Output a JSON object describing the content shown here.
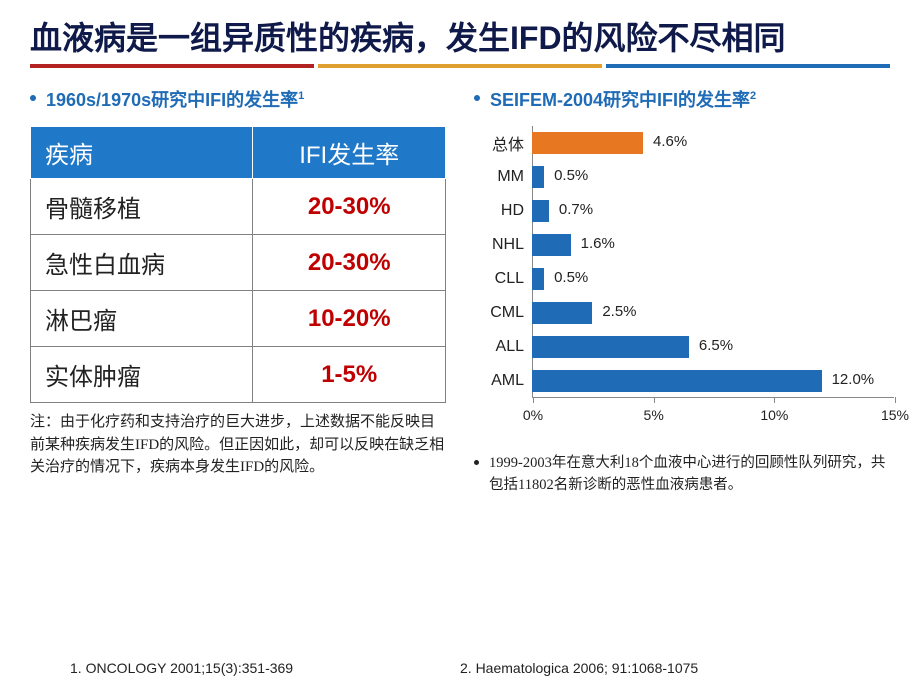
{
  "title": "血液病是一组异质性的疾病，发生IFD的风险不尽相同",
  "underline_colors": {
    "red": "#b22222",
    "yellow": "#e0a030",
    "blue": "#1f6bb6"
  },
  "left": {
    "heading": "1960s/1970s研究中IFI的发生率",
    "heading_sup": "1",
    "table": {
      "header_bg": "#1f78c8",
      "header_color": "#ffffff",
      "rate_color": "#c00000",
      "columns": [
        "疾病",
        "IFI发生率"
      ],
      "rows": [
        {
          "disease": "骨髓移植",
          "rate": "20-30%"
        },
        {
          "disease": "急性白血病",
          "rate": "20-30%"
        },
        {
          "disease": "淋巴瘤",
          "rate": "10-20%"
        },
        {
          "disease": "实体肿瘤",
          "rate": "1-5%"
        }
      ]
    },
    "note": "注：由于化疗药和支持治疗的巨大进步，上述数据不能反映目前某种疾病发生IFD的风险。但正因如此，却可以反映在缺乏相关治疗的情况下，疾病本身发生IFD的风险。"
  },
  "right": {
    "heading": "SEIFEM-2004研究中IFI的发生率",
    "heading_sup": "2",
    "chart": {
      "type": "bar-horizontal",
      "xmax": 15,
      "xticks": [
        0,
        5,
        10,
        15
      ],
      "bar_default_color": "#1f6bb6",
      "highlight_color": "#e87722",
      "series": [
        {
          "label": "总体",
          "value": 4.6,
          "display": "4.6%",
          "color": "#e87722"
        },
        {
          "label": "MM",
          "value": 0.5,
          "display": "0.5%",
          "color": "#1f6bb6"
        },
        {
          "label": "HD",
          "value": 0.7,
          "display": "0.7%",
          "color": "#1f6bb6"
        },
        {
          "label": "NHL",
          "value": 1.6,
          "display": "1.6%",
          "color": "#1f6bb6"
        },
        {
          "label": "CLL",
          "value": 0.5,
          "display": "0.5%",
          "color": "#1f6bb6"
        },
        {
          "label": "CML",
          "value": 2.5,
          "display": "2.5%",
          "color": "#1f6bb6"
        },
        {
          "label": "ALL",
          "value": 6.5,
          "display": "6.5%",
          "color": "#1f6bb6"
        },
        {
          "label": "AML",
          "value": 12.0,
          "display": "12.0%",
          "color": "#1f6bb6"
        }
      ]
    },
    "study_note": "1999-2003年在意大利18个血液中心进行的回顾性队列研究，共包括11802名新诊断的恶性血液病患者。"
  },
  "refs": {
    "ref1": "1. ONCOLOGY 2001;15(3):351-369",
    "ref2": "2. Haematologica 2006; 91:1068-1075"
  }
}
